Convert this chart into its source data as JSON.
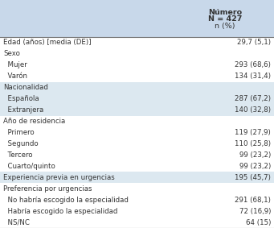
{
  "header_col1": "Número",
  "header_col2": "N = 427",
  "header_col3": "n (%)",
  "header_bg": "#c8d8ea",
  "row_bg_blue": "#dce8f0",
  "row_bg_white": "#ffffff",
  "rows": [
    {
      "label": "Edad (años) [media (DE)]",
      "value": "29,7 (5,1)",
      "indent": false,
      "bg": "white"
    },
    {
      "label": "Sexo",
      "value": "",
      "indent": false,
      "bg": "white"
    },
    {
      "label": "  Mujer",
      "value": "293 (68,6)",
      "indent": true,
      "bg": "white"
    },
    {
      "label": "  Varón",
      "value": "134 (31,4)",
      "indent": true,
      "bg": "white"
    },
    {
      "label": "Nacionalidad",
      "value": "",
      "indent": false,
      "bg": "blue"
    },
    {
      "label": "  Española",
      "value": "287 (67,2)",
      "indent": true,
      "bg": "blue"
    },
    {
      "label": "  Extranjera",
      "value": "140 (32,8)",
      "indent": true,
      "bg": "blue"
    },
    {
      "label": "Año de residencia",
      "value": "",
      "indent": false,
      "bg": "white"
    },
    {
      "label": "  Primero",
      "value": "119 (27,9)",
      "indent": true,
      "bg": "white"
    },
    {
      "label": "  Segundo",
      "value": "110 (25,8)",
      "indent": true,
      "bg": "white"
    },
    {
      "label": "  Tercero",
      "value": "99 (23,2)",
      "indent": true,
      "bg": "white"
    },
    {
      "label": "  Cuarto/quinto",
      "value": "99 (23,2)",
      "indent": true,
      "bg": "white"
    },
    {
      "label": "Experiencia previa en urgencias",
      "value": "195 (45,7)",
      "indent": false,
      "bg": "blue"
    },
    {
      "label": "Preferencia por urgencias",
      "value": "",
      "indent": false,
      "bg": "white"
    },
    {
      "label": "  No habría escogido la especialidad",
      "value": "291 (68,1)",
      "indent": true,
      "bg": "white"
    },
    {
      "label": "  Habría escogido la especialidad",
      "value": "72 (16,9)",
      "indent": true,
      "bg": "white"
    },
    {
      "label": "  NS/NC",
      "value": "64 (15)",
      "indent": true,
      "bg": "white"
    }
  ],
  "fontsize": 6.2,
  "header_fontsize": 6.8,
  "text_color": "#333333"
}
